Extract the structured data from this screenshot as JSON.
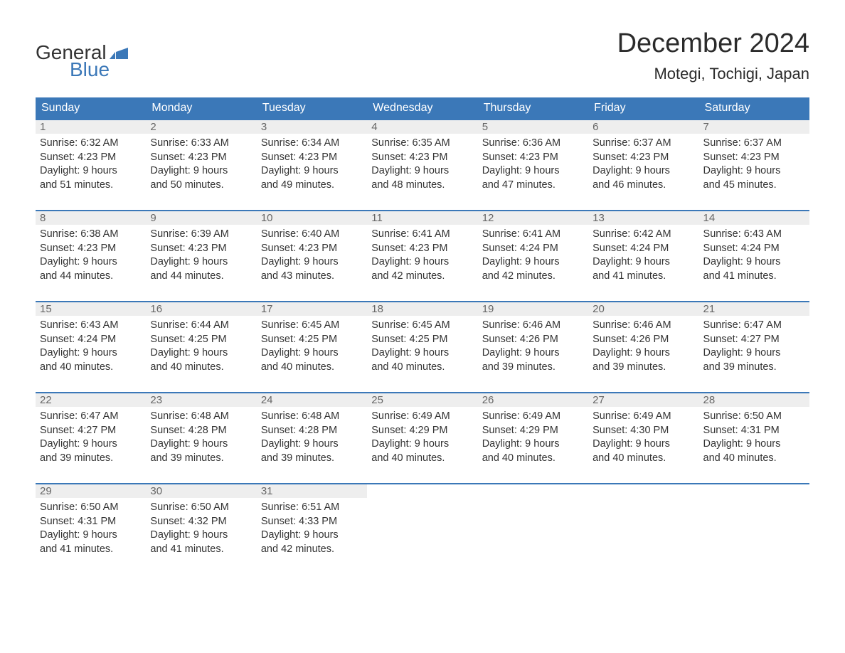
{
  "logo": {
    "line1": "General",
    "line2": "Blue"
  },
  "title": "December 2024",
  "location": "Motegi, Tochigi, Japan",
  "colors": {
    "header_bg": "#3b78b8",
    "header_text": "#ffffff",
    "daynum_bg": "#eeeeee",
    "daynum_text": "#666666",
    "body_text": "#333333",
    "page_bg": "#ffffff",
    "row_border": "#3b78b8",
    "logo_blue": "#3b78b8"
  },
  "fonts": {
    "title_size_pt": 38,
    "location_size_pt": 22,
    "dow_size_pt": 16,
    "body_size_pt": 14.5,
    "logo_size_pt": 28
  },
  "daysOfWeek": [
    "Sunday",
    "Monday",
    "Tuesday",
    "Wednesday",
    "Thursday",
    "Friday",
    "Saturday"
  ],
  "weeks": [
    [
      {
        "n": "1",
        "sunrise": "Sunrise: 6:32 AM",
        "sunset": "Sunset: 4:23 PM",
        "day1": "Daylight: 9 hours",
        "day2": "and 51 minutes."
      },
      {
        "n": "2",
        "sunrise": "Sunrise: 6:33 AM",
        "sunset": "Sunset: 4:23 PM",
        "day1": "Daylight: 9 hours",
        "day2": "and 50 minutes."
      },
      {
        "n": "3",
        "sunrise": "Sunrise: 6:34 AM",
        "sunset": "Sunset: 4:23 PM",
        "day1": "Daylight: 9 hours",
        "day2": "and 49 minutes."
      },
      {
        "n": "4",
        "sunrise": "Sunrise: 6:35 AM",
        "sunset": "Sunset: 4:23 PM",
        "day1": "Daylight: 9 hours",
        "day2": "and 48 minutes."
      },
      {
        "n": "5",
        "sunrise": "Sunrise: 6:36 AM",
        "sunset": "Sunset: 4:23 PM",
        "day1": "Daylight: 9 hours",
        "day2": "and 47 minutes."
      },
      {
        "n": "6",
        "sunrise": "Sunrise: 6:37 AM",
        "sunset": "Sunset: 4:23 PM",
        "day1": "Daylight: 9 hours",
        "day2": "and 46 minutes."
      },
      {
        "n": "7",
        "sunrise": "Sunrise: 6:37 AM",
        "sunset": "Sunset: 4:23 PM",
        "day1": "Daylight: 9 hours",
        "day2": "and 45 minutes."
      }
    ],
    [
      {
        "n": "8",
        "sunrise": "Sunrise: 6:38 AM",
        "sunset": "Sunset: 4:23 PM",
        "day1": "Daylight: 9 hours",
        "day2": "and 44 minutes."
      },
      {
        "n": "9",
        "sunrise": "Sunrise: 6:39 AM",
        "sunset": "Sunset: 4:23 PM",
        "day1": "Daylight: 9 hours",
        "day2": "and 44 minutes."
      },
      {
        "n": "10",
        "sunrise": "Sunrise: 6:40 AM",
        "sunset": "Sunset: 4:23 PM",
        "day1": "Daylight: 9 hours",
        "day2": "and 43 minutes."
      },
      {
        "n": "11",
        "sunrise": "Sunrise: 6:41 AM",
        "sunset": "Sunset: 4:23 PM",
        "day1": "Daylight: 9 hours",
        "day2": "and 42 minutes."
      },
      {
        "n": "12",
        "sunrise": "Sunrise: 6:41 AM",
        "sunset": "Sunset: 4:24 PM",
        "day1": "Daylight: 9 hours",
        "day2": "and 42 minutes."
      },
      {
        "n": "13",
        "sunrise": "Sunrise: 6:42 AM",
        "sunset": "Sunset: 4:24 PM",
        "day1": "Daylight: 9 hours",
        "day2": "and 41 minutes."
      },
      {
        "n": "14",
        "sunrise": "Sunrise: 6:43 AM",
        "sunset": "Sunset: 4:24 PM",
        "day1": "Daylight: 9 hours",
        "day2": "and 41 minutes."
      }
    ],
    [
      {
        "n": "15",
        "sunrise": "Sunrise: 6:43 AM",
        "sunset": "Sunset: 4:24 PM",
        "day1": "Daylight: 9 hours",
        "day2": "and 40 minutes."
      },
      {
        "n": "16",
        "sunrise": "Sunrise: 6:44 AM",
        "sunset": "Sunset: 4:25 PM",
        "day1": "Daylight: 9 hours",
        "day2": "and 40 minutes."
      },
      {
        "n": "17",
        "sunrise": "Sunrise: 6:45 AM",
        "sunset": "Sunset: 4:25 PM",
        "day1": "Daylight: 9 hours",
        "day2": "and 40 minutes."
      },
      {
        "n": "18",
        "sunrise": "Sunrise: 6:45 AM",
        "sunset": "Sunset: 4:25 PM",
        "day1": "Daylight: 9 hours",
        "day2": "and 40 minutes."
      },
      {
        "n": "19",
        "sunrise": "Sunrise: 6:46 AM",
        "sunset": "Sunset: 4:26 PM",
        "day1": "Daylight: 9 hours",
        "day2": "and 39 minutes."
      },
      {
        "n": "20",
        "sunrise": "Sunrise: 6:46 AM",
        "sunset": "Sunset: 4:26 PM",
        "day1": "Daylight: 9 hours",
        "day2": "and 39 minutes."
      },
      {
        "n": "21",
        "sunrise": "Sunrise: 6:47 AM",
        "sunset": "Sunset: 4:27 PM",
        "day1": "Daylight: 9 hours",
        "day2": "and 39 minutes."
      }
    ],
    [
      {
        "n": "22",
        "sunrise": "Sunrise: 6:47 AM",
        "sunset": "Sunset: 4:27 PM",
        "day1": "Daylight: 9 hours",
        "day2": "and 39 minutes."
      },
      {
        "n": "23",
        "sunrise": "Sunrise: 6:48 AM",
        "sunset": "Sunset: 4:28 PM",
        "day1": "Daylight: 9 hours",
        "day2": "and 39 minutes."
      },
      {
        "n": "24",
        "sunrise": "Sunrise: 6:48 AM",
        "sunset": "Sunset: 4:28 PM",
        "day1": "Daylight: 9 hours",
        "day2": "and 39 minutes."
      },
      {
        "n": "25",
        "sunrise": "Sunrise: 6:49 AM",
        "sunset": "Sunset: 4:29 PM",
        "day1": "Daylight: 9 hours",
        "day2": "and 40 minutes."
      },
      {
        "n": "26",
        "sunrise": "Sunrise: 6:49 AM",
        "sunset": "Sunset: 4:29 PM",
        "day1": "Daylight: 9 hours",
        "day2": "and 40 minutes."
      },
      {
        "n": "27",
        "sunrise": "Sunrise: 6:49 AM",
        "sunset": "Sunset: 4:30 PM",
        "day1": "Daylight: 9 hours",
        "day2": "and 40 minutes."
      },
      {
        "n": "28",
        "sunrise": "Sunrise: 6:50 AM",
        "sunset": "Sunset: 4:31 PM",
        "day1": "Daylight: 9 hours",
        "day2": "and 40 minutes."
      }
    ],
    [
      {
        "n": "29",
        "sunrise": "Sunrise: 6:50 AM",
        "sunset": "Sunset: 4:31 PM",
        "day1": "Daylight: 9 hours",
        "day2": "and 41 minutes."
      },
      {
        "n": "30",
        "sunrise": "Sunrise: 6:50 AM",
        "sunset": "Sunset: 4:32 PM",
        "day1": "Daylight: 9 hours",
        "day2": "and 41 minutes."
      },
      {
        "n": "31",
        "sunrise": "Sunrise: 6:51 AM",
        "sunset": "Sunset: 4:33 PM",
        "day1": "Daylight: 9 hours",
        "day2": "and 42 minutes."
      },
      null,
      null,
      null,
      null
    ]
  ]
}
